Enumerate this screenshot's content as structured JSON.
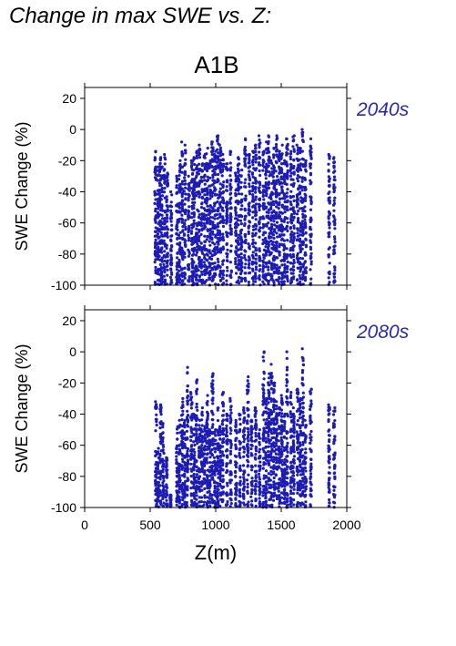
{
  "title": "Change in max SWE vs. Z:",
  "scenario": "A1B",
  "colors": {
    "points": "#1c1cb4",
    "period_label": "#2a2aa8",
    "axes": "#000000"
  },
  "chart_data": [
    {
      "type": "scatter",
      "panel_label": "2040s",
      "ylabel": "SWE Change (%)",
      "xlabel": "",
      "xlim": [
        0,
        2000
      ],
      "ylim": [
        -100,
        27
      ],
      "yticks": [
        -100,
        -80,
        -60,
        -40,
        -20,
        0,
        20
      ],
      "xticks": [],
      "grid": false,
      "columns": [
        {
          "x": 540,
          "ymax": -14
        },
        {
          "x": 560,
          "ymax": -24
        },
        {
          "x": 575,
          "ymax": -18
        },
        {
          "x": 590,
          "ymax": -24
        },
        {
          "x": 610,
          "ymax": -16
        },
        {
          "x": 630,
          "ymax": -28
        },
        {
          "x": 660,
          "ymax": -40
        },
        {
          "x": 705,
          "ymax": -30
        },
        {
          "x": 725,
          "ymax": -20
        },
        {
          "x": 745,
          "ymax": -8
        },
        {
          "x": 765,
          "ymax": -10
        },
        {
          "x": 795,
          "ymax": -30
        },
        {
          "x": 820,
          "ymax": -20
        },
        {
          "x": 835,
          "ymax": -18
        },
        {
          "x": 855,
          "ymax": -14
        },
        {
          "x": 875,
          "ymax": -10
        },
        {
          "x": 895,
          "ymax": -22
        },
        {
          "x": 915,
          "ymax": -16
        },
        {
          "x": 935,
          "ymax": -12
        },
        {
          "x": 955,
          "ymax": -20
        },
        {
          "x": 975,
          "ymax": -8
        },
        {
          "x": 995,
          "ymax": -14
        },
        {
          "x": 1015,
          "ymax": -4
        },
        {
          "x": 1035,
          "ymax": -10
        },
        {
          "x": 1055,
          "ymax": -16
        },
        {
          "x": 1085,
          "ymax": -22
        },
        {
          "x": 1115,
          "ymax": -14
        },
        {
          "x": 1155,
          "ymax": -28
        },
        {
          "x": 1175,
          "ymax": -18
        },
        {
          "x": 1195,
          "ymax": -26
        },
        {
          "x": 1225,
          "ymax": -6
        },
        {
          "x": 1255,
          "ymax": -16
        },
        {
          "x": 1285,
          "ymax": -14
        },
        {
          "x": 1305,
          "ymax": -10
        },
        {
          "x": 1335,
          "ymax": -4
        },
        {
          "x": 1365,
          "ymax": -14
        },
        {
          "x": 1385,
          "ymax": -8
        },
        {
          "x": 1405,
          "ymax": -4
        },
        {
          "x": 1425,
          "ymax": -20
        },
        {
          "x": 1445,
          "ymax": -12
        },
        {
          "x": 1465,
          "ymax": -4
        },
        {
          "x": 1485,
          "ymax": -14
        },
        {
          "x": 1505,
          "ymax": -10
        },
        {
          "x": 1525,
          "ymax": -20
        },
        {
          "x": 1545,
          "ymax": -6
        },
        {
          "x": 1575,
          "ymax": -14
        },
        {
          "x": 1595,
          "ymax": -4
        },
        {
          "x": 1625,
          "ymax": -10
        },
        {
          "x": 1645,
          "ymax": -12
        },
        {
          "x": 1665,
          "ymax": 0
        },
        {
          "x": 1685,
          "ymax": -20
        },
        {
          "x": 1725,
          "ymax": -6
        },
        {
          "x": 1865,
          "ymax": -16
        },
        {
          "x": 1905,
          "ymax": -18
        }
      ]
    },
    {
      "type": "scatter",
      "panel_label": "2080s",
      "ylabel": "SWE Change (%)",
      "xlabel": "Z(m)",
      "xlim": [
        0,
        2000
      ],
      "ylim": [
        -100,
        27
      ],
      "yticks": [
        -100,
        -80,
        -60,
        -40,
        -20,
        0,
        20
      ],
      "xticks": [
        0,
        500,
        1000,
        1500,
        2000
      ],
      "grid": false,
      "columns": [
        {
          "x": 545,
          "ymax": -32
        },
        {
          "x": 560,
          "ymax": -62
        },
        {
          "x": 580,
          "ymax": -34
        },
        {
          "x": 600,
          "ymax": -46
        },
        {
          "x": 625,
          "ymax": -68
        },
        {
          "x": 655,
          "ymax": -92
        },
        {
          "x": 705,
          "ymax": -48
        },
        {
          "x": 725,
          "ymax": -44
        },
        {
          "x": 745,
          "ymax": -30
        },
        {
          "x": 765,
          "ymax": -44
        },
        {
          "x": 785,
          "ymax": -10
        },
        {
          "x": 815,
          "ymax": -26
        },
        {
          "x": 835,
          "ymax": -40
        },
        {
          "x": 855,
          "ymax": -18
        },
        {
          "x": 875,
          "ymax": -44
        },
        {
          "x": 895,
          "ymax": -36
        },
        {
          "x": 915,
          "ymax": -48
        },
        {
          "x": 935,
          "ymax": -28
        },
        {
          "x": 955,
          "ymax": -50
        },
        {
          "x": 975,
          "ymax": -14
        },
        {
          "x": 995,
          "ymax": -50
        },
        {
          "x": 1015,
          "ymax": -36
        },
        {
          "x": 1035,
          "ymax": -48
        },
        {
          "x": 1055,
          "ymax": -26
        },
        {
          "x": 1085,
          "ymax": -40
        },
        {
          "x": 1115,
          "ymax": -30
        },
        {
          "x": 1155,
          "ymax": -44
        },
        {
          "x": 1185,
          "ymax": -40
        },
        {
          "x": 1215,
          "ymax": -36
        },
        {
          "x": 1245,
          "ymax": -16
        },
        {
          "x": 1275,
          "ymax": -44
        },
        {
          "x": 1305,
          "ymax": -36
        },
        {
          "x": 1335,
          "ymax": -50
        },
        {
          "x": 1365,
          "ymax": 0
        },
        {
          "x": 1385,
          "ymax": -30
        },
        {
          "x": 1405,
          "ymax": -14
        },
        {
          "x": 1425,
          "ymax": -8
        },
        {
          "x": 1445,
          "ymax": -20
        },
        {
          "x": 1465,
          "ymax": -32
        },
        {
          "x": 1485,
          "ymax": -36
        },
        {
          "x": 1505,
          "ymax": -28
        },
        {
          "x": 1525,
          "ymax": -40
        },
        {
          "x": 1545,
          "ymax": 0
        },
        {
          "x": 1575,
          "ymax": -26
        },
        {
          "x": 1595,
          "ymax": -36
        },
        {
          "x": 1625,
          "ymax": -24
        },
        {
          "x": 1645,
          "ymax": -30
        },
        {
          "x": 1665,
          "ymax": 2
        },
        {
          "x": 1685,
          "ymax": -44
        },
        {
          "x": 1725,
          "ymax": -24
        },
        {
          "x": 1865,
          "ymax": -34
        },
        {
          "x": 1905,
          "ymax": -36
        }
      ]
    }
  ]
}
